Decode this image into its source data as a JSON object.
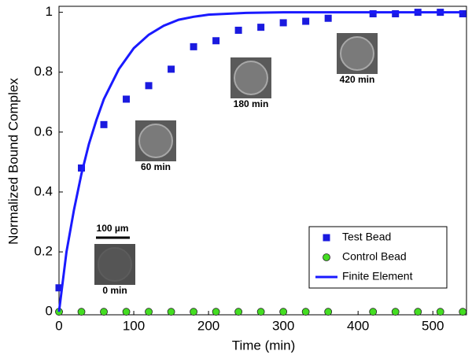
{
  "chart_data": {
    "type": "scatter",
    "xlabel": "Time (min)",
    "ylabel": "Normalized Bound Complex",
    "xlim": [
      0,
      545
    ],
    "ylim": [
      -0.01,
      1.02
    ],
    "xticks": [
      0,
      100,
      200,
      300,
      400,
      500
    ],
    "yticks": [
      0,
      0.2,
      0.4,
      0.6,
      0.8,
      1
    ],
    "legend": "lower right",
    "series": [
      {
        "name": "Test Bead",
        "type": "scatter",
        "marker": "square",
        "color": "#1a1adf",
        "x": [
          0,
          30,
          60,
          90,
          120,
          150,
          180,
          210,
          240,
          270,
          300,
          330,
          360,
          420,
          450,
          480,
          510,
          540
        ],
        "values": [
          0.08,
          0.48,
          0.625,
          0.71,
          0.755,
          0.81,
          0.885,
          0.905,
          0.94,
          0.95,
          0.965,
          0.97,
          0.98,
          0.995,
          0.995,
          1.0,
          1.0,
          0.995
        ]
      },
      {
        "name": "Control Bead",
        "type": "scatter",
        "marker": "circle",
        "color": "#44dd22",
        "x": [
          0,
          30,
          60,
          90,
          120,
          150,
          180,
          210,
          240,
          270,
          300,
          330,
          360,
          420,
          450,
          480,
          510,
          540
        ],
        "values": [
          0,
          0,
          0,
          0,
          0,
          0,
          0,
          0,
          0,
          0,
          0,
          0,
          0,
          0,
          0,
          0,
          0,
          0
        ]
      },
      {
        "name": "Finite Element",
        "type": "line",
        "color": "#1a1aff",
        "x": [
          0,
          10,
          20,
          30,
          40,
          50,
          60,
          80,
          100,
          120,
          140,
          160,
          180,
          200,
          250,
          300,
          400,
          540
        ],
        "values": [
          0,
          0.2,
          0.34,
          0.46,
          0.56,
          0.64,
          0.71,
          0.81,
          0.88,
          0.925,
          0.955,
          0.975,
          0.985,
          0.992,
          0.998,
          1,
          1,
          1
        ]
      }
    ],
    "insets": [
      {
        "label": "0 min"
      },
      {
        "label": "60 min"
      },
      {
        "label": "180 min"
      },
      {
        "label": "420 min"
      }
    ],
    "scale_bar": "100 µm"
  }
}
